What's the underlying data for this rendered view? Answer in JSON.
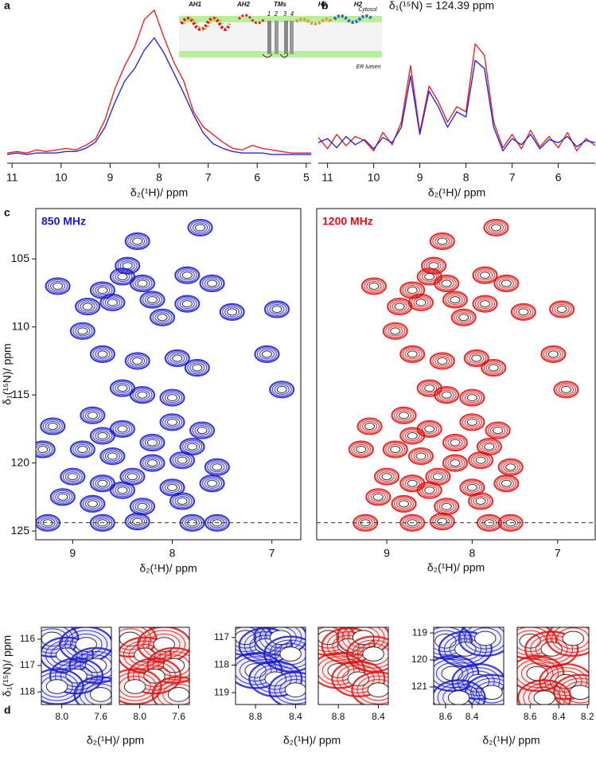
{
  "chart_data": [
    {
      "type": "line",
      "panel": "a",
      "xlabel": "δ₂(¹H)/ ppm",
      "xlim": [
        11.1,
        4.9
      ],
      "xticks": [
        11,
        10,
        9,
        8,
        7,
        6,
        5
      ],
      "ylim": [
        0,
        100
      ],
      "annotations": [
        "AH1",
        "AH2",
        "TMs",
        "1",
        "2",
        "3",
        "4",
        "H1",
        "H2",
        "Cytosol",
        "ER lumen"
      ],
      "x": [
        11.1,
        10.9,
        10.7,
        10.5,
        10.3,
        10.1,
        9.9,
        9.7,
        9.5,
        9.3,
        9.1,
        8.9,
        8.7,
        8.5,
        8.3,
        8.1,
        7.9,
        7.7,
        7.5,
        7.3,
        7.1,
        6.9,
        6.7,
        6.5,
        6.3,
        6.1,
        5.9,
        5.7,
        5.5,
        5.3,
        5.1,
        4.9
      ],
      "series": [
        {
          "color": "#e8252b",
          "values": [
            3,
            4,
            3,
            5,
            4,
            5,
            6,
            5,
            8,
            12,
            25,
            45,
            60,
            72,
            90,
            96,
            78,
            62,
            50,
            30,
            20,
            15,
            10,
            6,
            5,
            8,
            6,
            5,
            4,
            3,
            3,
            3
          ]
        },
        {
          "color": "#2a2ad0",
          "values": [
            2,
            3,
            2,
            3,
            3,
            3,
            4,
            4,
            6,
            10,
            20,
            36,
            50,
            58,
            70,
            78,
            68,
            55,
            42,
            28,
            16,
            9,
            6,
            4,
            3,
            3,
            3,
            2,
            2,
            2,
            2,
            2
          ]
        }
      ]
    },
    {
      "type": "line",
      "panel": "b",
      "title": "δ₁(¹⁵N) = 124.39 ppm",
      "xlabel": "δ₂(¹H)/ ppm",
      "xlim": [
        11.2,
        5.2
      ],
      "xticks": [
        11,
        10,
        9,
        8,
        7,
        6
      ],
      "ylim": [
        -20,
        100
      ],
      "x": [
        11.2,
        11.0,
        10.8,
        10.6,
        10.4,
        10.2,
        10.0,
        9.8,
        9.6,
        9.4,
        9.2,
        9.0,
        8.8,
        8.6,
        8.4,
        8.2,
        8.0,
        7.8,
        7.6,
        7.4,
        7.2,
        7.0,
        6.8,
        6.6,
        6.4,
        6.2,
        6.0,
        5.8,
        5.6,
        5.4,
        5.2
      ],
      "series": [
        {
          "color": "#e8252b",
          "values": [
            5,
            -6,
            8,
            -3,
            6,
            2,
            -8,
            10,
            -2,
            20,
            75,
            10,
            55,
            40,
            20,
            35,
            30,
            96,
            85,
            20,
            -5,
            8,
            -6,
            12,
            -4,
            6,
            -5,
            10,
            -8,
            4,
            -3
          ]
        },
        {
          "color": "#2a2ad0",
          "values": [
            0,
            4,
            -5,
            6,
            -2,
            3,
            -6,
            5,
            0,
            15,
            65,
            8,
            50,
            35,
            15,
            30,
            25,
            80,
            72,
            15,
            -8,
            4,
            -2,
            8,
            -6,
            3,
            0,
            6,
            -4,
            2,
            0
          ]
        }
      ]
    },
    {
      "type": "contour",
      "panel": "c",
      "label": "850 MHz",
      "color": "#1a1acc",
      "xlabel": "δ₂(¹H)/ ppm",
      "ylabel": "δ₁(¹⁵N)/ ppm",
      "xlim": [
        9.37,
        6.71
      ],
      "xticks": [
        9,
        8,
        7
      ],
      "ylim": [
        101.3,
        125.64
      ],
      "yticks": [
        105,
        110,
        115,
        120,
        125
      ],
      "slice": 124.39,
      "peaks": {
        "x": [
          7.72,
          8.35,
          8.45,
          8.5,
          8.7,
          8.3,
          7.85,
          7.6,
          9.15,
          8.85,
          8.6,
          8.2,
          7.85,
          8.1,
          7.4,
          6.95,
          8.9,
          8.7,
          8.35,
          7.75,
          7.95,
          7.05,
          6.9,
          8.5,
          8.3,
          8.0,
          8.8,
          9.2,
          8.5,
          8.0,
          7.7,
          9.3,
          8.9,
          8.6,
          8.2,
          7.9,
          7.55,
          9.0,
          8.7,
          8.4,
          8.0,
          7.6,
          9.1,
          8.8,
          8.3,
          7.9,
          8.5,
          9.25,
          8.7,
          8.35,
          7.8,
          7.55,
          8.2,
          8.7,
          7.8
        ],
        "y": [
          102.7,
          103.7,
          105.5,
          106.3,
          107.3,
          106.8,
          106.2,
          106.8,
          107.0,
          108.5,
          108.2,
          108.0,
          108.3,
          109.3,
          108.9,
          108.7,
          110.3,
          112.0,
          112.5,
          113.0,
          112.3,
          112.0,
          114.6,
          114.5,
          115.0,
          115.2,
          116.5,
          117.3,
          117.5,
          117.0,
          117.6,
          119.0,
          119.0,
          119.5,
          120.0,
          119.8,
          120.3,
          121.0,
          121.5,
          121.0,
          121.8,
          121.5,
          122.5,
          123.0,
          123.2,
          122.8,
          122.0,
          124.4,
          124.4,
          124.3,
          124.4,
          124.4,
          118.5,
          118.0,
          118.8
        ]
      }
    },
    {
      "type": "contour",
      "label": "1200 MHz",
      "color": "#dd1111",
      "xlabel": "δ₂(¹H)/ ppm",
      "xlim": [
        9.82,
        6.56
      ],
      "xticks": [
        9,
        8,
        7
      ],
      "ylim": [
        101.3,
        125.64
      ],
      "slice": 124.39,
      "peaks": {
        "x": [
          7.72,
          8.35,
          8.45,
          8.5,
          8.7,
          8.3,
          7.85,
          7.6,
          9.15,
          8.85,
          8.6,
          8.2,
          7.85,
          8.1,
          7.4,
          6.95,
          8.9,
          8.7,
          8.35,
          7.75,
          7.95,
          7.05,
          6.9,
          8.5,
          8.3,
          8.0,
          8.8,
          9.2,
          8.5,
          8.0,
          7.7,
          9.3,
          8.9,
          8.6,
          8.2,
          7.9,
          7.55,
          9.0,
          8.7,
          8.4,
          8.0,
          7.6,
          9.1,
          8.8,
          8.3,
          7.9,
          8.5,
          9.25,
          8.7,
          8.35,
          7.8,
          7.55,
          8.2,
          8.7,
          7.8
        ],
        "y": [
          102.7,
          103.7,
          105.5,
          106.3,
          107.3,
          106.8,
          106.2,
          106.8,
          107.0,
          108.5,
          108.2,
          108.0,
          108.3,
          109.3,
          108.9,
          108.7,
          110.3,
          112.0,
          112.5,
          113.0,
          112.3,
          112.0,
          114.6,
          114.5,
          115.0,
          115.2,
          116.5,
          117.3,
          117.5,
          117.0,
          117.6,
          119.0,
          119.0,
          119.5,
          120.0,
          119.8,
          120.3,
          121.0,
          121.5,
          121.0,
          121.8,
          121.5,
          122.5,
          123.0,
          123.2,
          122.8,
          122.0,
          124.4,
          124.4,
          124.3,
          124.4,
          124.4,
          118.5,
          118.0,
          118.8
        ]
      }
    },
    {
      "type": "contour",
      "panel": "d",
      "color": "#1a1acc",
      "xlabel": "δ₂(¹H)/ ppm",
      "ylabel": "δ₁(¹⁵N)/ ppm",
      "xlim": [
        8.21,
        7.49
      ],
      "xticks": [
        {
          "value": 8,
          "label": "8.0"
        },
        7.6
      ],
      "ylim": [
        115.55,
        118.48
      ],
      "yticks": [
        116,
        117,
        118
      ],
      "peaks": {
        "x": [
          8.1,
          7.95,
          7.75,
          7.65,
          7.85,
          8.05,
          7.6
        ],
        "y": [
          116.0,
          116.6,
          116.2,
          117.0,
          117.4,
          117.8,
          118.1
        ]
      }
    },
    {
      "type": "contour",
      "color": "#dd1111",
      "xlim": [
        8.21,
        7.49
      ],
      "xticks": [
        {
          "value": 8,
          "label": "8.0"
        },
        7.6
      ],
      "ylim": [
        115.55,
        118.48
      ],
      "peaks": {
        "x": [
          8.1,
          7.95,
          7.75,
          7.65,
          7.85,
          8.05,
          7.6
        ],
        "y": [
          116.0,
          116.6,
          116.2,
          117.0,
          117.4,
          117.8,
          118.1
        ]
      }
    },
    {
      "type": "contour",
      "color": "#1a1acc",
      "xlabel": "δ₂(¹H)/ ppm",
      "xlim": [
        9.0,
        8.3
      ],
      "xticks": [
        8.8,
        8.4
      ],
      "ylim": [
        116.63,
        119.43
      ],
      "yticks": [
        117,
        118,
        119
      ],
      "peaks": {
        "x": [
          8.9,
          8.7,
          8.55,
          8.45,
          8.8,
          8.6,
          8.4
        ],
        "y": [
          117.0,
          117.3,
          117.0,
          117.6,
          118.2,
          118.5,
          118.9
        ]
      }
    },
    {
      "type": "contour",
      "color": "#dd1111",
      "xlim": [
        9.0,
        8.3
      ],
      "xticks": [
        8.8,
        8.4
      ],
      "ylim": [
        116.63,
        119.43
      ],
      "peaks": {
        "x": [
          8.9,
          8.7,
          8.55,
          8.45,
          8.8,
          8.6,
          8.4
        ],
        "y": [
          117.0,
          117.3,
          117.0,
          117.6,
          118.2,
          118.5,
          118.9
        ]
      }
    },
    {
      "type": "contour",
      "color": "#1a1acc",
      "xlabel": "δ₂(¹H)/ ppm",
      "xlim": [
        8.69,
        8.16
      ],
      "xticks": [
        8.6,
        8.4
      ],
      "ylim": [
        118.79,
        121.65
      ],
      "yticks": [
        119,
        120,
        121
      ],
      "peaks": {
        "x": [
          8.6,
          8.45,
          8.3,
          8.55,
          8.35,
          8.25,
          8.5
        ],
        "y": [
          119.3,
          119.6,
          119.2,
          120.5,
          120.8,
          121.2,
          121.4
        ]
      }
    },
    {
      "type": "contour",
      "color": "#dd1111",
      "xlim": [
        8.69,
        8.19
      ],
      "xticks": [
        8.6,
        8.4,
        8.2
      ],
      "ylim": [
        118.79,
        121.65
      ],
      "peaks": {
        "x": [
          8.6,
          8.45,
          8.3,
          8.55,
          8.35,
          8.25,
          8.5
        ],
        "y": [
          119.3,
          119.6,
          119.2,
          120.5,
          120.8,
          121.2,
          121.4
        ]
      }
    }
  ]
}
